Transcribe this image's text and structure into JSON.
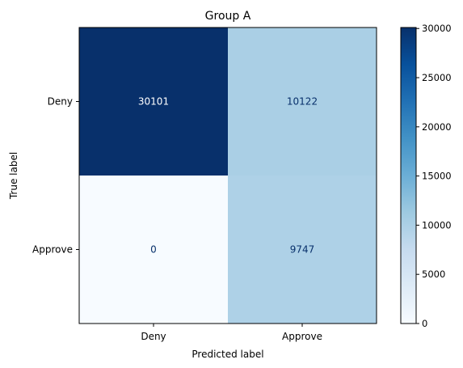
{
  "chart_data": {
    "type": "heatmap",
    "title": "Group A",
    "xlabel": "Predicted label",
    "ylabel": "True label",
    "row_labels": [
      "Deny",
      "Approve"
    ],
    "col_labels": [
      "Deny",
      "Approve"
    ],
    "values": [
      [
        30101,
        10122
      ],
      [
        0,
        9747
      ]
    ],
    "colormap": "Blues",
    "colorbar": {
      "range": [
        0,
        30101
      ],
      "ticks": [
        0,
        5000,
        10000,
        15000,
        20000,
        25000,
        30000
      ],
      "tick_labels": [
        "0",
        "5000",
        "10000",
        "15000",
        "20000",
        "25000",
        "30000"
      ]
    },
    "cell_text_colors": {
      "on_dark": "#ffffff",
      "on_light": "#08306b"
    }
  }
}
